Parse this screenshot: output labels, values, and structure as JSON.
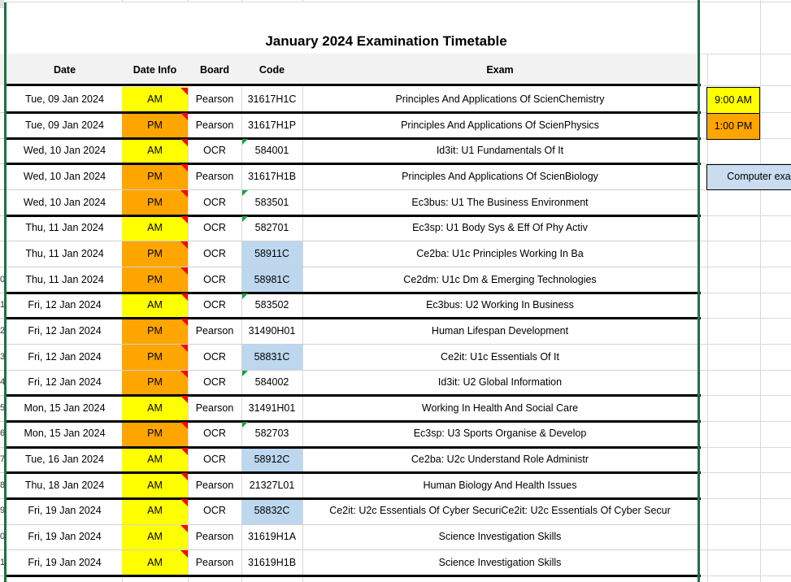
{
  "title": "January 2024 Examination Timetable",
  "columns": [
    "Date",
    "Date Info",
    "Board",
    "Code",
    "Exam"
  ],
  "rows": [
    {
      "n": "",
      "date": "Tue, 09 Jan 2024",
      "session": "AM",
      "board": "Pearson",
      "code": "31617H1C",
      "exam": "Principles And Applications Of ScienChemistry",
      "code_style": "plain",
      "bottom": "thick"
    },
    {
      "n": "",
      "date": "Tue, 09 Jan 2024",
      "session": "PM",
      "board": "Pearson",
      "code": "31617H1P",
      "exam": "Principles And Applications Of ScienPhysics",
      "code_style": "plain",
      "bottom": "thick"
    },
    {
      "n": "",
      "date": "Wed, 10 Jan 2024",
      "session": "AM",
      "board": "OCR",
      "code": "584001",
      "exam": "Id3it: U1 Fundamentals Of It",
      "code_style": "flag",
      "bottom": "thick"
    },
    {
      "n": "",
      "date": "Wed, 10 Jan 2024",
      "session": "PM",
      "board": "Pearson",
      "code": "31617H1B",
      "exam": "Principles And Applications Of ScienBiology",
      "code_style": "plain",
      "bottom": "thin"
    },
    {
      "n": "",
      "date": "Wed, 10 Jan 2024",
      "session": "PM",
      "board": "OCR",
      "code": "583501",
      "exam": "Ec3bus: U1 The Business Environment",
      "code_style": "flag",
      "bottom": "thick"
    },
    {
      "n": "",
      "date": "Thu, 11 Jan 2024",
      "session": "AM",
      "board": "OCR",
      "code": "582701",
      "exam": "Ec3sp: U1 Body Sys & Eff Of Phy Activ",
      "code_style": "flag",
      "bottom": "thin"
    },
    {
      "n": "",
      "date": "Thu, 11 Jan 2024",
      "session": "PM",
      "board": "OCR",
      "code": "58911C",
      "exam": "Ce2ba: U1c Principles Working In Ba",
      "code_style": "blue",
      "bottom": "thin"
    },
    {
      "n": "0",
      "date": "Thu, 11 Jan 2024",
      "session": "PM",
      "board": "OCR",
      "code": "58981C",
      "exam": "Ce2dm: U1c Dm & Emerging Technologies",
      "code_style": "blue",
      "bottom": "thick"
    },
    {
      "n": "1",
      "date": "Fri, 12 Jan 2024",
      "session": "AM",
      "board": "OCR",
      "code": "583502",
      "exam": "Ec3bus: U2 Working In Business",
      "code_style": "flag",
      "bottom": "thick"
    },
    {
      "n": "2",
      "date": "Fri, 12 Jan 2024",
      "session": "PM",
      "board": "Pearson",
      "code": "31490H01",
      "exam": "Human Lifespan Development",
      "code_style": "plain",
      "bottom": "thin"
    },
    {
      "n": "3",
      "date": "Fri, 12 Jan 2024",
      "session": "PM",
      "board": "OCR",
      "code": "58831C",
      "exam": "Ce2it: U1c Essentials Of It",
      "code_style": "blue",
      "bottom": "thin"
    },
    {
      "n": "4",
      "date": "Fri, 12 Jan 2024",
      "session": "PM",
      "board": "OCR",
      "code": "584002",
      "exam": "Id3it: U2 Global Information",
      "code_style": "flag",
      "bottom": "thick"
    },
    {
      "n": "5",
      "date": "Mon, 15 Jan 2024",
      "session": "AM",
      "board": "Pearson",
      "code": "31491H01",
      "exam": "Working In Health And Social Care",
      "code_style": "plain",
      "bottom": "thick"
    },
    {
      "n": "6",
      "date": "Mon, 15 Jan 2024",
      "session": "PM",
      "board": "OCR",
      "code": "582703",
      "exam": "Ec3sp: U3 Sports Organise & Develop",
      "code_style": "flag",
      "bottom": "thick"
    },
    {
      "n": "7",
      "date": "Tue, 16 Jan 2024",
      "session": "AM",
      "board": "OCR",
      "code": "58912C",
      "exam": "Ce2ba: U2c Understand Role Administr",
      "code_style": "blue",
      "bottom": "thick"
    },
    {
      "n": "8",
      "date": "Thu, 18 Jan 2024",
      "session": "AM",
      "board": "Pearson",
      "code": "21327L01",
      "exam": "Human Biology And Health Issues",
      "code_style": "plain",
      "bottom": "thick"
    },
    {
      "n": "9",
      "date": "Fri, 19 Jan 2024",
      "session": "AM",
      "board": "OCR",
      "code": "58832C",
      "exam": "Ce2it: U2c Essentials Of Cyber SecuriCe2it: U2c Essentials Of Cyber Secur",
      "code_style": "blue",
      "bottom": "thin"
    },
    {
      "n": "0",
      "date": "Fri, 19 Jan 2024",
      "session": "AM",
      "board": "Pearson",
      "code": "31619H1A",
      "exam": "Science Investigation Skills",
      "code_style": "plain",
      "bottom": "thin"
    },
    {
      "n": "1",
      "date": "Fri, 19 Jan 2024",
      "session": "AM",
      "board": "Pearson",
      "code": "31619H1B",
      "exam": "Science Investigation Skills",
      "code_style": "plain",
      "bottom": "thick"
    }
  ],
  "legend": {
    "am_time": "9:00 AM",
    "pm_time": "1:00 PM",
    "computer_label": "Computer exa"
  },
  "colors": {
    "am": "#FFFF00",
    "pm": "#FFA500",
    "code_highlight": "#BDD7EE",
    "legend_computer_bg": "#C9DCF0",
    "green_guide": "#1F7045",
    "flag_green": "#18A045",
    "note_red": "#FF0000",
    "header_band": "#F2F2F2",
    "grid": "#D9D9D9",
    "thin_border": "#D0D0D0",
    "thick_border": "#000000"
  }
}
